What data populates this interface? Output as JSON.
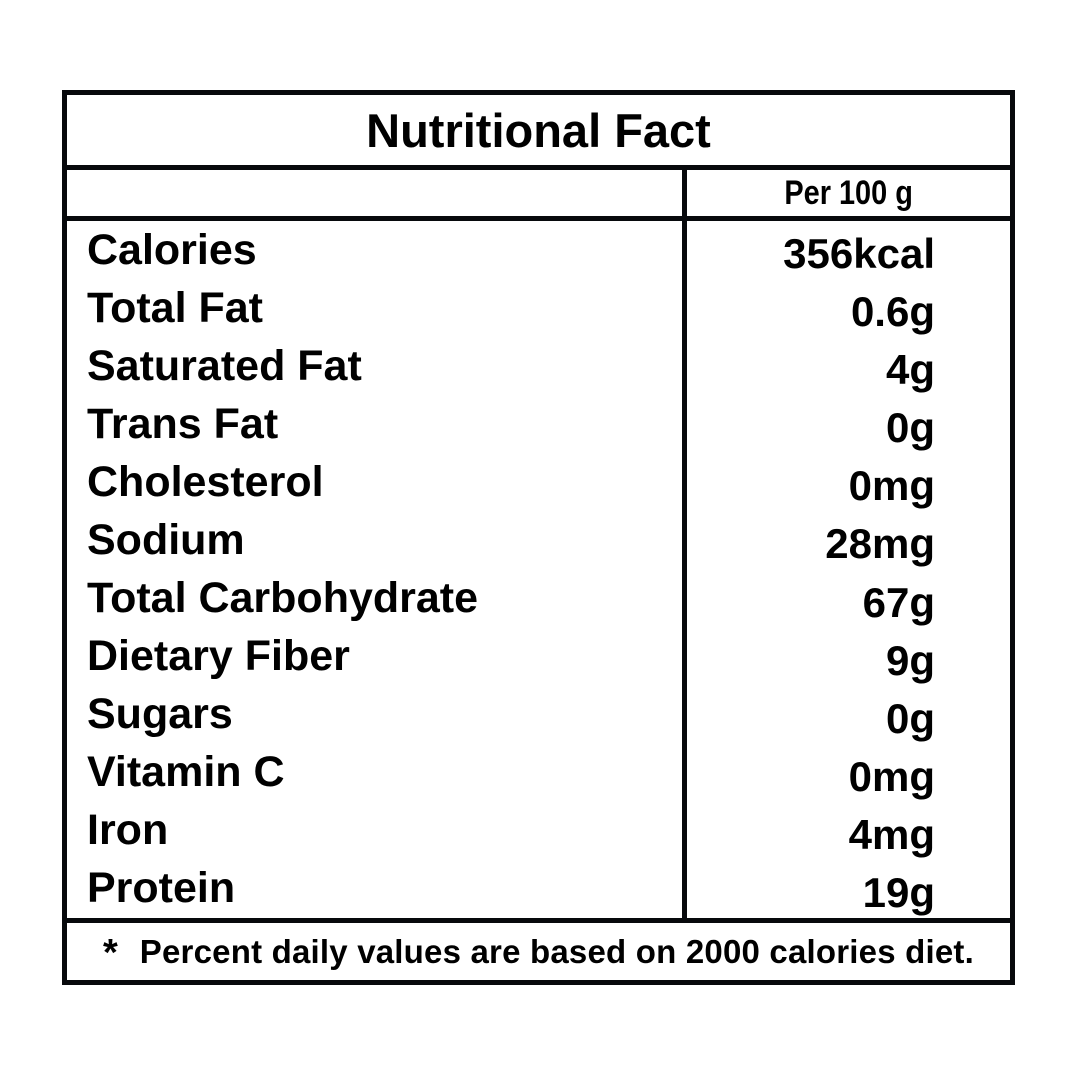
{
  "title": "Nutritional Fact",
  "header": {
    "per_label": "Per 100 g"
  },
  "rows": [
    {
      "label": "Calories",
      "value": "356kcal"
    },
    {
      "label": "Total Fat",
      "value": "0.6g"
    },
    {
      "label": "Saturated Fat",
      "value": "4g"
    },
    {
      "label": "Trans Fat",
      "value": "0g"
    },
    {
      "label": "Cholesterol",
      "value": "0mg"
    },
    {
      "label": "Sodium",
      "value": "28mg"
    },
    {
      "label": "Total Carbohydrate",
      "value": "67g"
    },
    {
      "label": "Dietary Fiber",
      "value": "9g"
    },
    {
      "label": "Sugars",
      "value": "0g"
    },
    {
      "label": "Vitamin C",
      "value": "0mg"
    },
    {
      "label": "Iron",
      "value": "4mg"
    },
    {
      "label": "Protein",
      "value": "19g"
    }
  ],
  "footnote": {
    "marker": "*",
    "text": "Percent daily values are based on 2000 calories diet."
  },
  "colors": {
    "border": "#07090c",
    "background": "#ffffff",
    "text": "#000000"
  }
}
